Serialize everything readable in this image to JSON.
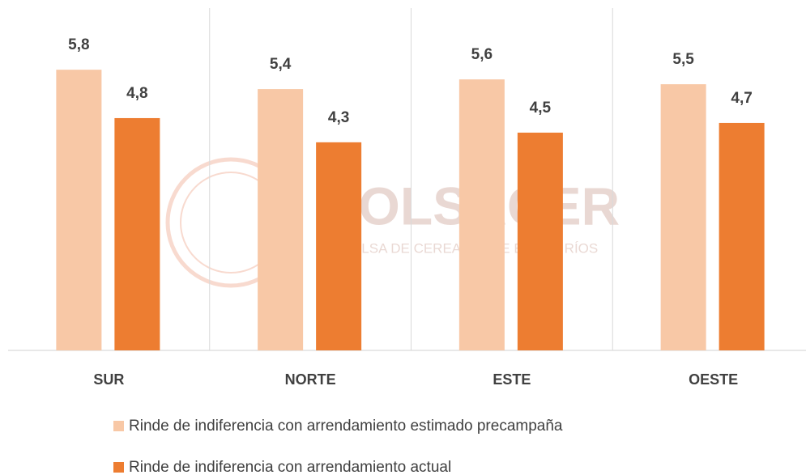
{
  "chart_data": {
    "type": "bar",
    "categories": [
      "SUR",
      "NORTE",
      "ESTE",
      "OESTE"
    ],
    "series": [
      {
        "name": "Rinde de indiferencia con arrendamiento estimado precampaña",
        "color": "#f8c8a6",
        "values": [
          5.8,
          5.4,
          5.6,
          5.5
        ],
        "value_labels": [
          "5,8",
          "5,4",
          "5,6",
          "5,5"
        ]
      },
      {
        "name": "Rinde de indiferencia con arrendamiento actual",
        "color": "#ed7d31",
        "values": [
          4.8,
          4.3,
          4.5,
          4.7
        ],
        "value_labels": [
          "4,8",
          "4,3",
          "4,5",
          "4,7"
        ]
      }
    ],
    "watermark": {
      "title": "BOLSACER",
      "subtitle": "BOLSA DE CEREALES DE ENTRE RÍOS"
    }
  }
}
